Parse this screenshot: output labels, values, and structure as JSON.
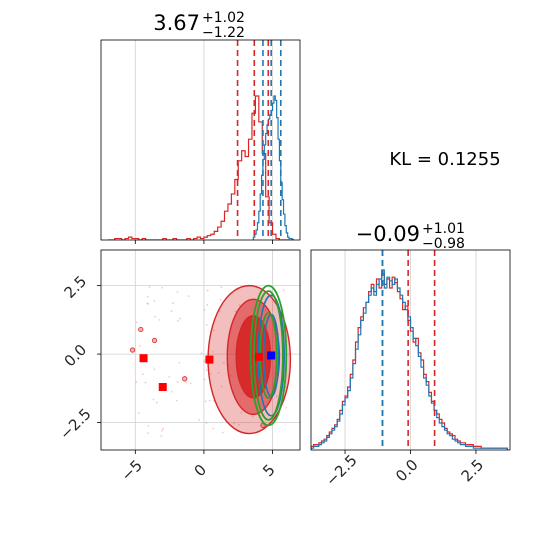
{
  "colors": {
    "red": "#d62728",
    "blue": "#1f77b4",
    "green": "#2ca02c",
    "marker_blue": "#0000ff",
    "marker_red": "#ff0000",
    "grid": "#d0d0d0"
  },
  "kl_label": "KL = 0.1255",
  "chart_data": [
    {
      "panel": "marginal-top",
      "type": "histogram",
      "title_value": "3.67",
      "title_plus": "+1.02",
      "title_minus": "−1.22",
      "xlim": [
        -7.5,
        7.0
      ],
      "grid": true,
      "quantiles": [
        {
          "series": "red",
          "values": [
            2.45,
            3.67,
            4.69
          ]
        },
        {
          "series": "blue",
          "values": [
            4.3,
            4.9,
            5.6
          ]
        }
      ],
      "series": [
        {
          "color": "red",
          "bin_start": -7.0,
          "bin_width": 0.25,
          "counts": [
            0,
            0,
            0.01,
            0.01,
            0,
            0.01,
            0.02,
            0.01,
            0.01,
            0,
            0.01,
            0,
            0,
            0,
            0,
            0,
            0.01,
            0,
            0,
            0.01,
            0,
            0,
            0,
            0.01,
            0,
            0.01,
            0.02,
            0.01,
            0.02,
            0.03,
            0.04,
            0.06,
            0.09,
            0.13,
            0.2,
            0.25,
            0.32,
            0.42,
            0.55,
            0.62,
            0.58,
            0.7,
            0.88,
            1.0,
            0.82,
            0.6,
            0.3,
            0.12,
            0.04,
            0.01,
            0,
            0,
            0
          ]
        },
        {
          "color": "blue",
          "bin_start": 3.6,
          "bin_width": 0.1,
          "counts": [
            0.02,
            0.04,
            0.07,
            0.12,
            0.2,
            0.32,
            0.45,
            0.56,
            0.66,
            0.74,
            0.8,
            0.84,
            0.87,
            0.9,
            0.95,
            1.0,
            0.97,
            0.85,
            0.7,
            0.55,
            0.4,
            0.28,
            0.18,
            0.1,
            0.05,
            0.02,
            0.01,
            0.01,
            0.005
          ]
        }
      ],
      "xticks": [
        -5,
        0,
        5
      ]
    },
    {
      "panel": "joint",
      "type": "contour",
      "xlim": [
        -7.5,
        7.0
      ],
      "ylim": [
        -3.5,
        3.8
      ],
      "grid": true,
      "xticks": [
        -5,
        0,
        5
      ],
      "xtick_labels": [
        "−5",
        "0",
        "5"
      ],
      "yticks": [
        2.5,
        0.0,
        -2.5
      ],
      "ytick_labels": [
        "2.5",
        "0.0",
        "−2.5"
      ],
      "red_markers": [
        {
          "x": -4.4,
          "y": -0.15
        },
        {
          "x": -3.0,
          "y": -1.2
        },
        {
          "x": 0.4,
          "y": -0.2
        },
        {
          "x": 4.0,
          "y": -0.1
        }
      ],
      "blue_marker": {
        "x": 4.9,
        "y": -0.05
      },
      "red_contours": [
        {
          "cx": 3.6,
          "cy": -0.1,
          "rx": 1.25,
          "ry": 1.5,
          "opacity": 0.95
        },
        {
          "cx": 3.6,
          "cy": -0.1,
          "rx": 1.9,
          "ry": 2.1,
          "opacity": 0.55
        },
        {
          "cx": 3.3,
          "cy": -0.2,
          "rx": 3.0,
          "ry": 2.7,
          "opacity": 0.3
        }
      ],
      "blue_contours": [
        {
          "cx": 4.9,
          "cy": -0.05,
          "rx": 0.55,
          "ry": 1.5
        },
        {
          "cx": 4.9,
          "cy": -0.05,
          "rx": 0.95,
          "ry": 2.2
        }
      ],
      "green_contours": [
        {
          "cx": 4.7,
          "cy": -0.05,
          "rx": 0.6,
          "ry": 1.55
        },
        {
          "cx": 4.7,
          "cy": -0.05,
          "rx": 1.05,
          "ry": 2.35
        },
        {
          "cx": 4.7,
          "cy": -0.05,
          "rx": 1.3,
          "ry": 2.55
        }
      ]
    },
    {
      "panel": "marginal-right",
      "type": "histogram",
      "title_value": "−0.09",
      "title_plus": "+1.01",
      "title_minus": "−0.98",
      "xlim": [
        -3.8,
        3.8
      ],
      "grid": true,
      "xticks": [
        -2.5,
        0.0,
        2.5
      ],
      "xtick_labels": [
        "−2.5",
        "0.0",
        "2.5"
      ],
      "quantiles": [
        {
          "series": "red",
          "values": [
            -1.07,
            -0.09,
            0.92
          ]
        },
        {
          "series": "blue",
          "values": [
            -1.07
          ]
        }
      ],
      "series": [
        {
          "color": "red",
          "bin_start": -3.8,
          "bin_width": 0.1,
          "counts": [
            0.02,
            0.03,
            0.03,
            0.04,
            0.05,
            0.06,
            0.08,
            0.1,
            0.12,
            0.14,
            0.17,
            0.22,
            0.27,
            0.3,
            0.35,
            0.42,
            0.5,
            0.6,
            0.68,
            0.74,
            0.79,
            0.82,
            0.88,
            0.92,
            0.88,
            0.95,
            0.9,
            0.98,
            0.92,
            0.95,
            0.9,
            0.96,
            0.93,
            0.88,
            0.84,
            0.78,
            0.8,
            0.72,
            0.66,
            0.6,
            0.62,
            0.54,
            0.5,
            0.42,
            0.38,
            0.32,
            0.27,
            0.22,
            0.2,
            0.17,
            0.15,
            0.12,
            0.1,
            0.09,
            0.08,
            0.06,
            0.05,
            0.04,
            0.04,
            0.03,
            0.03,
            0.03,
            0.02,
            0.02,
            0.02,
            0.01,
            0.01,
            0.01,
            0.01,
            0.01,
            0.01,
            0.01,
            0.01,
            0.01,
            0.01
          ]
        },
        {
          "color": "blue",
          "bin_start": -3.8,
          "bin_width": 0.1,
          "counts": [
            0.01,
            0.02,
            0.02,
            0.03,
            0.04,
            0.05,
            0.07,
            0.09,
            0.11,
            0.13,
            0.16,
            0.2,
            0.25,
            0.29,
            0.33,
            0.4,
            0.48,
            0.56,
            0.64,
            0.72,
            0.76,
            0.82,
            0.86,
            0.9,
            0.86,
            0.92,
            0.95,
            1.0,
            0.9,
            0.96,
            0.94,
            0.92,
            0.95,
            0.9,
            0.86,
            0.82,
            0.78,
            0.74,
            0.68,
            0.62,
            0.58,
            0.52,
            0.46,
            0.4,
            0.36,
            0.3,
            0.26,
            0.22,
            0.18,
            0.15,
            0.13,
            0.11,
            0.09,
            0.08,
            0.06,
            0.05,
            0.04,
            0.03,
            0.03,
            0.02,
            0.02,
            0.02,
            0.01,
            0.01,
            0.01,
            0.01,
            0.01,
            0.01,
            0.01,
            0.01,
            0.01,
            0.01,
            0.01,
            0.01,
            0.01
          ]
        }
      ]
    }
  ]
}
